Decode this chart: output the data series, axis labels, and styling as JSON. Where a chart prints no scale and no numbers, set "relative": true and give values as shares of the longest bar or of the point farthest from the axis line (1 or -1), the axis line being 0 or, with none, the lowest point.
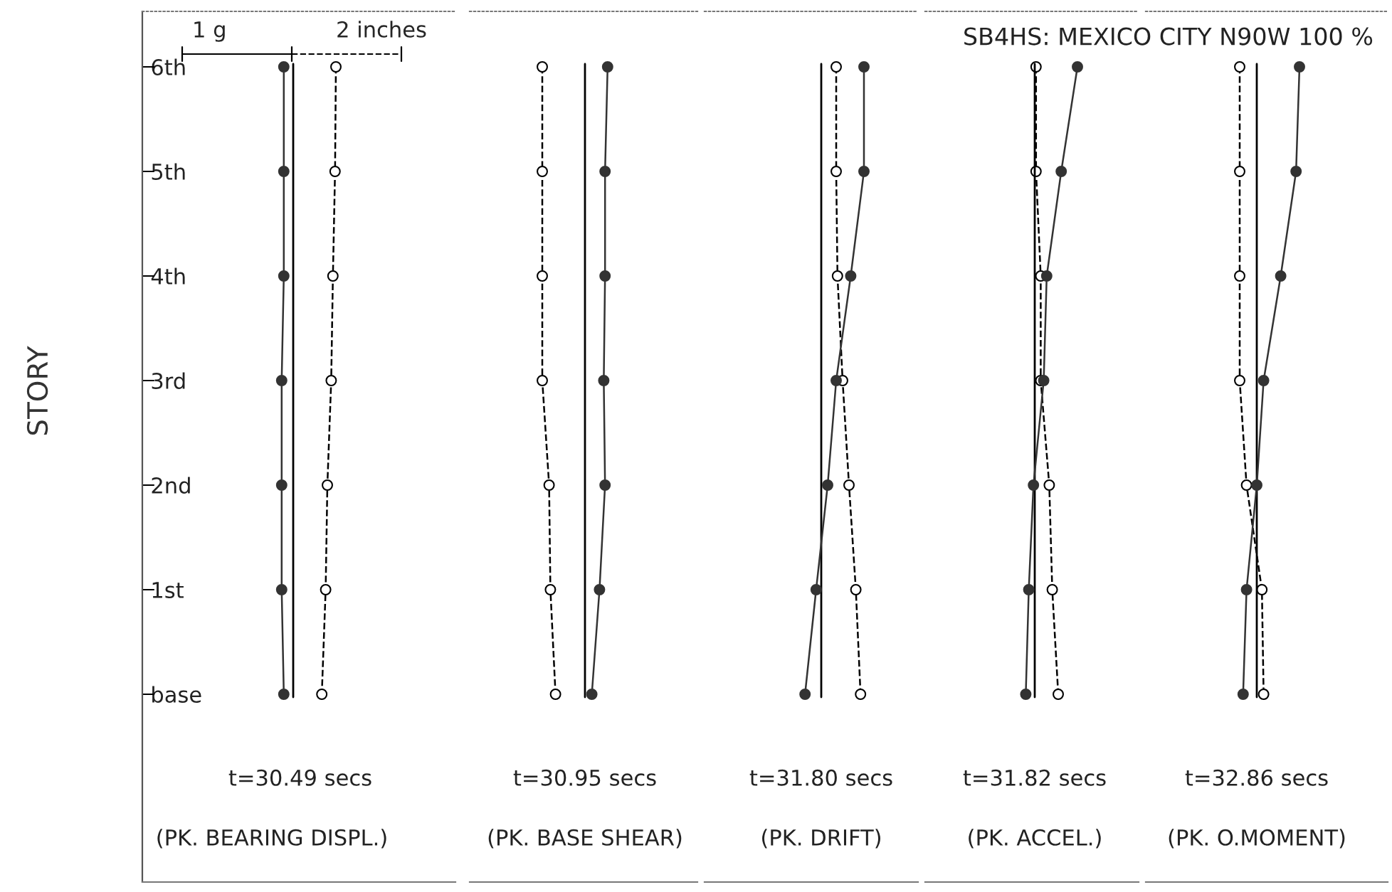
{
  "chart_data": [
    {
      "type": "line",
      "orientation": "horizontal",
      "relative": true,
      "ylabel": "STORY",
      "categories": [
        "6th",
        "5th",
        "4th",
        "3rd",
        "2nd",
        "1st",
        "base"
      ],
      "series": [
        {
          "color": "#333333",
          "marker": "circle",
          "line_style": "solid",
          "values": [
            -0.22,
            -0.22,
            -0.22,
            -0.27,
            -0.27,
            -0.27,
            -0.22
          ]
        },
        {
          "color": "#000000",
          "marker": "circle",
          "line_style": "dashed",
          "values": [
            1,
            0.98,
            0.93,
            0.89,
            0.8,
            0.76,
            0.67
          ]
        }
      ],
      "ref_lines": [
        {
          "axis": "x",
          "value": 0,
          "color": "#000000"
        }
      ],
      "annotations": [
        "1 g",
        "2 inches",
        "t=30.49 secs",
        "(PK. BEARING DISPL.)"
      ],
      "tick_labels": "y",
      "grid": false,
      "legend": false
    },
    {
      "type": "line",
      "orientation": "horizontal",
      "relative": true,
      "categories": [
        null,
        null,
        null,
        null,
        null,
        null,
        null
      ],
      "series": [
        {
          "color": "#333333",
          "marker": "circle",
          "line_style": "solid",
          "values": [
            0.53,
            0.47,
            0.47,
            0.44,
            0.47,
            0.34,
            0.16
          ]
        },
        {
          "color": "#000000",
          "marker": "circle",
          "line_style": "dashed",
          "values": [
            -1,
            -1,
            -1,
            -1,
            -0.84,
            -0.81,
            -0.69
          ]
        }
      ],
      "ref_lines": [
        {
          "axis": "x",
          "value": 0,
          "color": "#000000"
        }
      ],
      "annotations": [
        "t=30.95 secs",
        "(PK. BASE SHEAR)"
      ],
      "tick_labels": false,
      "grid": false,
      "legend": false
    },
    {
      "type": "line",
      "orientation": "horizontal",
      "relative": true,
      "categories": [
        null,
        null,
        null,
        null,
        null,
        null,
        null
      ],
      "series": [
        {
          "color": "#333333",
          "marker": "circle",
          "line_style": "solid",
          "values": [
            1,
            1,
            0.69,
            0.35,
            0.15,
            -0.12,
            -0.38
          ]
        },
        {
          "color": "#000000",
          "marker": "circle",
          "line_style": "dashed",
          "values": [
            0.35,
            0.35,
            0.38,
            0.5,
            0.65,
            0.81,
            0.92
          ]
        }
      ],
      "ref_lines": [
        {
          "axis": "x",
          "value": 0,
          "color": "#000000"
        }
      ],
      "annotations": [
        "t=31.80 secs",
        "(PK. DRIFT)"
      ],
      "tick_labels": false,
      "grid": false,
      "legend": false
    },
    {
      "type": "line",
      "orientation": "horizontal",
      "relative": true,
      "categories": [
        null,
        null,
        null,
        null,
        null,
        null,
        null
      ],
      "series": [
        {
          "color": "#333333",
          "marker": "circle",
          "line_style": "solid",
          "values": [
            1,
            0.62,
            0.28,
            0.21,
            -0.03,
            -0.14,
            -0.21
          ]
        },
        {
          "color": "#000000",
          "marker": "circle",
          "line_style": "dashed",
          "values": [
            0.03,
            0.03,
            0.14,
            0.14,
            0.34,
            0.41,
            0.55
          ]
        }
      ],
      "ref_lines": [
        {
          "axis": "x",
          "value": 0,
          "color": "#000000"
        }
      ],
      "annotations": [
        "t=31.82 secs",
        "(PK. ACCEL.)"
      ],
      "tick_labels": false,
      "grid": false,
      "legend": false
    },
    {
      "type": "line",
      "orientation": "horizontal",
      "relative": true,
      "title": "SB4HS: MEXICO CITY N90W 100 %",
      "categories": [
        null,
        null,
        null,
        null,
        null,
        null,
        null
      ],
      "series": [
        {
          "color": "#333333",
          "marker": "circle",
          "line_style": "solid",
          "values": [
            1,
            0.92,
            0.56,
            0.16,
            0,
            -0.24,
            -0.32
          ]
        },
        {
          "color": "#000000",
          "marker": "circle",
          "line_style": "dashed",
          "values": [
            -0.4,
            -0.4,
            -0.4,
            -0.4,
            -0.24,
            0.12,
            0.16
          ]
        }
      ],
      "ref_lines": [
        {
          "axis": "x",
          "value": 0,
          "color": "#000000"
        }
      ],
      "annotations": [
        "t=32.86 secs",
        "(PK. O.MOMENT)"
      ],
      "tick_labels": false,
      "grid": false,
      "legend": false
    }
  ]
}
